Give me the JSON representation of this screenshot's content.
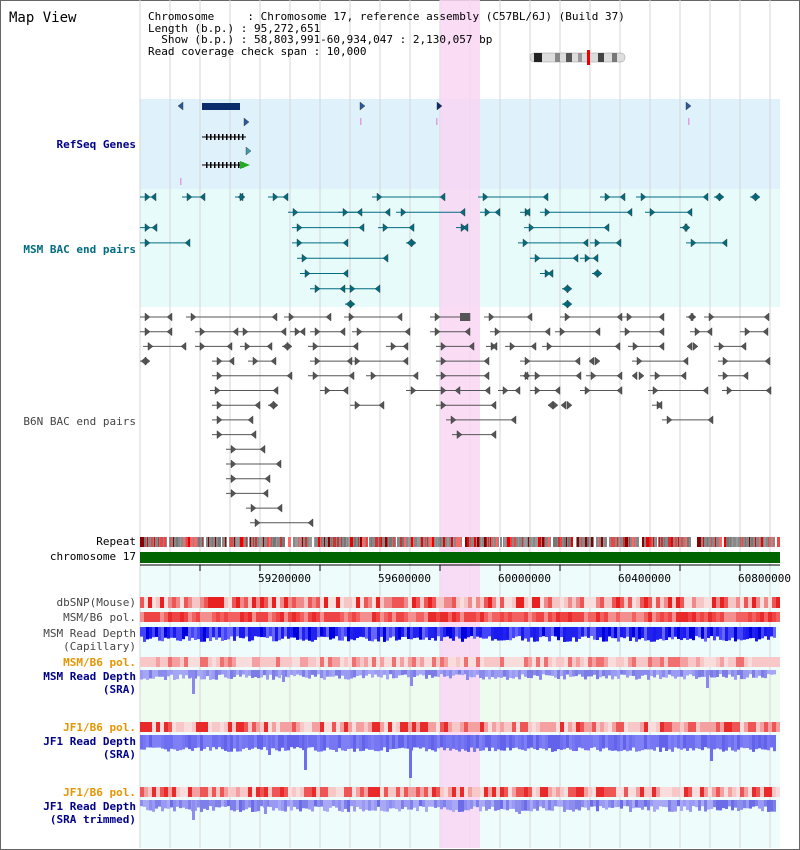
{
  "view": {
    "title": "Map View",
    "info": [
      "Chromosome     : Chromosome 17, reference assembly (C57BL/6J) (Build 37)",
      "Length (b.p.) : 95,272,651",
      "  Show (b.p.) : 58,803,991-60,934,047 : 2,130,057 bp",
      "Read coverage check span : 10,000"
    ]
  },
  "tracks": {
    "refseq": "RefSeq Genes",
    "msm_bac": "MSM BAC end pairs",
    "b6n_bac": "B6N BAC end pairs",
    "repeat": "Repeat",
    "chromosome": "chromosome 17",
    "dbsnp": "dbSNP(Mouse)",
    "msm_b6_pol_1": "MSM/B6 pol.",
    "msm_depth_cap_1": "MSM Read Depth",
    "msm_depth_cap_2": "(Capillary)",
    "msm_b6_pol_2": "MSM/B6 pol.",
    "msm_depth_sra_1": "MSM Read Depth",
    "msm_depth_sra_2": "(SRA)",
    "jf1_b6_pol_1": "JF1/B6 pol.",
    "jf1_depth_sra_1": "JF1 Read Depth",
    "jf1_depth_sra_2": "(SRA)",
    "jf1_b6_pol_2": "JF1/B6 pol.",
    "jf1_depth_trim_1": "JF1 Read Depth",
    "jf1_depth_trim_2": "(SRA trimmed)"
  },
  "axis": {
    "ticks": [
      "59200000",
      "59600000",
      "60000000",
      "60400000",
      "60800000"
    ]
  },
  "colors": {
    "refseq_bg": "#dff1fb",
    "msm_bac_bg": "#e8fbfb",
    "highlight": "#f9d6f3",
    "chromosome": "#006400",
    "label_blue": "#00008b",
    "label_teal": "#006d80",
    "label_gray": "#444444",
    "label_orange": "#e69500"
  }
}
